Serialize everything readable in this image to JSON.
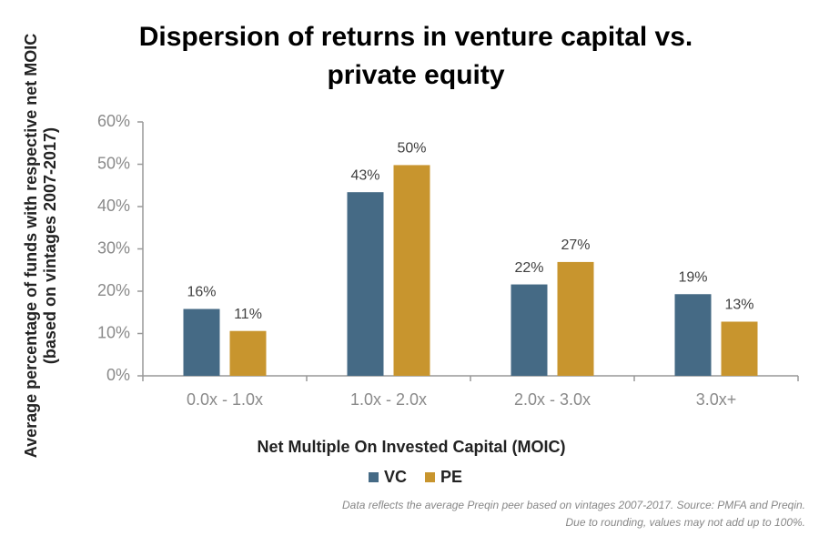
{
  "chart_data": {
    "type": "bar",
    "title": "Dispersion of returns in venture capital vs. private equity",
    "x_label": "Net Multiple On Invested Capital (MOIC)",
    "y_label": "Average percentage of funds with respective net MOIC (based on vintages 2007-2017)",
    "categories": [
      "0.0x - 1.0x",
      "1.0x - 2.0x",
      "2.0x - 3.0x",
      "3.0x+"
    ],
    "series": [
      {
        "name": "VC",
        "color": "#456a85",
        "values": [
          15.8,
          43.4,
          21.6,
          19.3
        ],
        "value_labels": [
          "16%",
          "43%",
          "22%",
          "19%"
        ]
      },
      {
        "name": "PE",
        "color": "#c8952e",
        "values": [
          10.6,
          49.8,
          26.9,
          12.8
        ],
        "value_labels": [
          "11%",
          "50%",
          "27%",
          "13%"
        ]
      }
    ],
    "ylim": [
      0,
      60
    ],
    "yticks": [
      {
        "value": 0,
        "label": "0%"
      },
      {
        "value": 10,
        "label": "10%"
      },
      {
        "value": 20,
        "label": "20%"
      },
      {
        "value": 30,
        "label": "30%"
      },
      {
        "value": 40,
        "label": "40%"
      },
      {
        "value": 50,
        "label": "50%"
      },
      {
        "value": 60,
        "label": "60%"
      }
    ],
    "legend": "bottom",
    "notes": [
      "Data reflects the average Preqin peer based on vintages 2007-2017. Source: PMFA and Preqin.",
      "Due to rounding, values may not add up to 100%."
    ]
  }
}
